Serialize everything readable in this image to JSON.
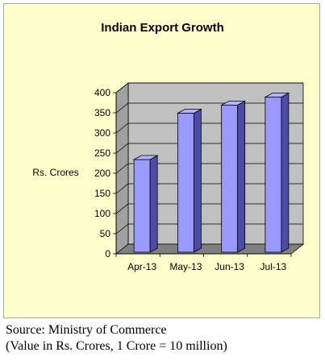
{
  "chart_data": {
    "type": "bar",
    "title": "Indian Export Growth",
    "ylabel": "Rs. Crores",
    "xlabel": "",
    "categories": [
      "Apr-13",
      "May-13",
      "Jun-13",
      "Jul-13"
    ],
    "values": [
      230,
      345,
      365,
      385
    ],
    "ylim": [
      0,
      400
    ],
    "yticks": [
      0,
      50,
      100,
      150,
      200,
      250,
      300,
      350,
      400
    ],
    "grid": true,
    "legend": "none",
    "colors": {
      "bar_front": "#9999ff",
      "bar_side": "#4c4ca6",
      "bar_top": "#b3b3ff",
      "wall": "#c0c0c0",
      "floor": "#808080",
      "panel": "#ffffcc"
    }
  },
  "footer": {
    "source": "Source: Ministry of Commerce",
    "note": "(Value in Rs. Crores, 1 Crore = 10 million)"
  }
}
